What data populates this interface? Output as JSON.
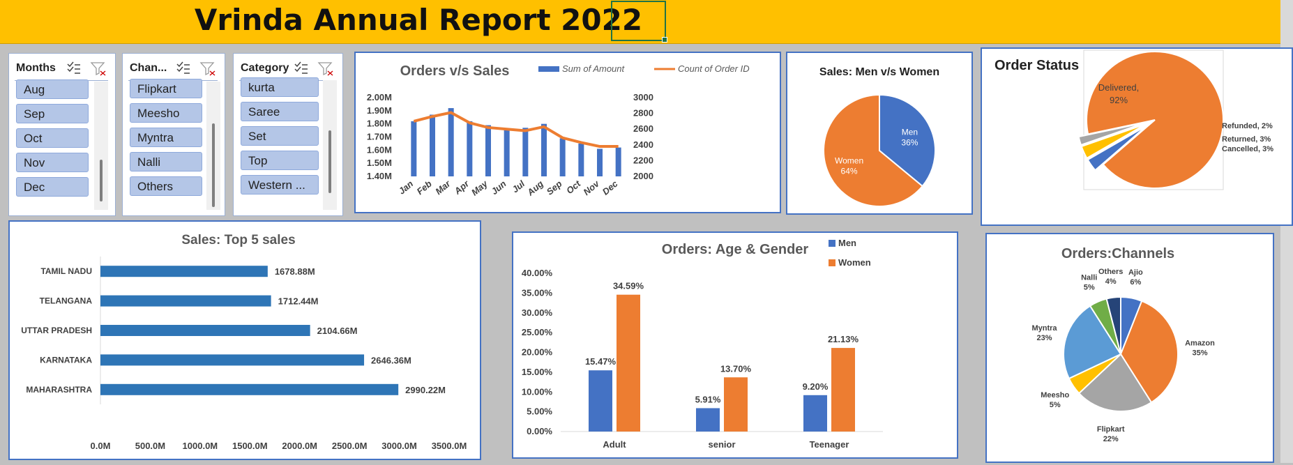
{
  "title": "Vrinda Annual Report 2022",
  "slicers": [
    {
      "header": "Months",
      "items": [
        "Aug",
        "Sep",
        "Oct",
        "Nov",
        "Dec"
      ]
    },
    {
      "header": "Chan...",
      "items": [
        "Flipkart",
        "Meesho",
        "Myntra",
        "Nalli",
        "Others"
      ]
    },
    {
      "header": "Category",
      "items": [
        "kurta",
        "Saree",
        "Set",
        "Top",
        "Western ..."
      ]
    }
  ],
  "colors": {
    "blue": "#4472c4",
    "orange": "#ed7d31",
    "gray": "#a5a5a5",
    "yellow": "#ffc000",
    "lightblue": "#5b9bd5",
    "green": "#70ad47",
    "navy": "#264478",
    "bar": "#2e75b6",
    "banner": "#ffc000"
  },
  "chart_data": [
    {
      "id": "orders_sales",
      "type": "bar+line",
      "title": "Orders v/s Sales",
      "categories": [
        "Jan",
        "Feb",
        "Mar",
        "Apr",
        "May",
        "Jun",
        "Jul",
        "Aug",
        "Sep",
        "Oct",
        "Nov",
        "Dec"
      ],
      "series": [
        {
          "name": "Sum of Amount",
          "type": "bar",
          "axis": "left",
          "values": [
            1.82,
            1.87,
            1.92,
            1.82,
            1.79,
            1.76,
            1.77,
            1.8,
            1.69,
            1.65,
            1.61,
            1.62
          ]
        },
        {
          "name": "Count of Order ID",
          "type": "line",
          "axis": "right",
          "values": [
            2700,
            2760,
            2810,
            2680,
            2620,
            2600,
            2580,
            2630,
            2490,
            2430,
            2380,
            2380
          ]
        }
      ],
      "left_axis": {
        "ylim": [
          1.4,
          2.0
        ],
        "ticks": [
          "1.40M",
          "1.50M",
          "1.60M",
          "1.70M",
          "1.80M",
          "1.90M",
          "2.00M"
        ]
      },
      "right_axis": {
        "ylim": [
          2000,
          3000
        ],
        "ticks": [
          "2000",
          "2200",
          "2400",
          "2600",
          "2800",
          "3000"
        ]
      },
      "legend": "top"
    },
    {
      "id": "men_women",
      "type": "pie",
      "title": "Sales:  Men v/s Women",
      "slices": [
        {
          "label": "Men",
          "value": 36,
          "text": "36%"
        },
        {
          "label": "Women",
          "value": 64,
          "text": "64%"
        }
      ]
    },
    {
      "id": "order_status",
      "type": "pie",
      "title": "Order Status",
      "slices": [
        {
          "label": "Delivered,",
          "value": 92,
          "text": "92%"
        },
        {
          "label": "Cancelled, 3%",
          "value": 3,
          "text": ""
        },
        {
          "label": "Returned, 3%",
          "value": 3,
          "text": ""
        },
        {
          "label": "Refunded, 2%",
          "value": 2,
          "text": ""
        }
      ]
    },
    {
      "id": "top5",
      "type": "bar",
      "orientation": "horizontal",
      "title": "Sales: Top 5 sales",
      "categories": [
        "TAMIL NADU",
        "TELANGANA",
        "UTTAR PRADESH",
        "KARNATAKA",
        "MAHARASHTRA"
      ],
      "values": [
        1678.88,
        1712.44,
        2104.66,
        2646.36,
        2990.22
      ],
      "value_labels": [
        "1678.88M",
        "1712.44M",
        "2104.66M",
        "2646.36M",
        "2990.22M"
      ],
      "xlim": [
        0,
        3500
      ],
      "ticks": [
        "0.0M",
        "500.0M",
        "1000.0M",
        "1500.0M",
        "2000.0M",
        "2500.0M",
        "3000.0M",
        "3500.0M"
      ]
    },
    {
      "id": "age_gender",
      "type": "bar",
      "title": "Orders: Age & Gender",
      "categories": [
        "Adult",
        "senior",
        "Teenager"
      ],
      "series": [
        {
          "name": "Men",
          "values": [
            15.47,
            5.91,
            9.2
          ],
          "labels": [
            "15.47%",
            "5.91%",
            "9.20%"
          ]
        },
        {
          "name": "Women",
          "values": [
            34.59,
            13.7,
            21.13
          ],
          "labels": [
            "34.59%",
            "13.70%",
            "21.13%"
          ]
        }
      ],
      "ylim": [
        0,
        40
      ],
      "ticks": [
        "0.00%",
        "5.00%",
        "10.00%",
        "15.00%",
        "20.00%",
        "25.00%",
        "30.00%",
        "35.00%",
        "40.00%"
      ],
      "legend": "top-right"
    },
    {
      "id": "channels",
      "type": "pie",
      "title": "Orders:Channels",
      "slices": [
        {
          "name": "Ajio",
          "value": 6,
          "text": "6%"
        },
        {
          "name": "Amazon",
          "value": 35,
          "text": "35%"
        },
        {
          "name": "Flipkart",
          "value": 22,
          "text": "22%"
        },
        {
          "name": "Meesho",
          "value": 5,
          "text": "5%"
        },
        {
          "name": "Myntra",
          "value": 23,
          "text": "23%"
        },
        {
          "name": "Nalli",
          "value": 5,
          "text": "5%"
        },
        {
          "name": "Others",
          "value": 4,
          "text": "4%"
        }
      ]
    }
  ]
}
